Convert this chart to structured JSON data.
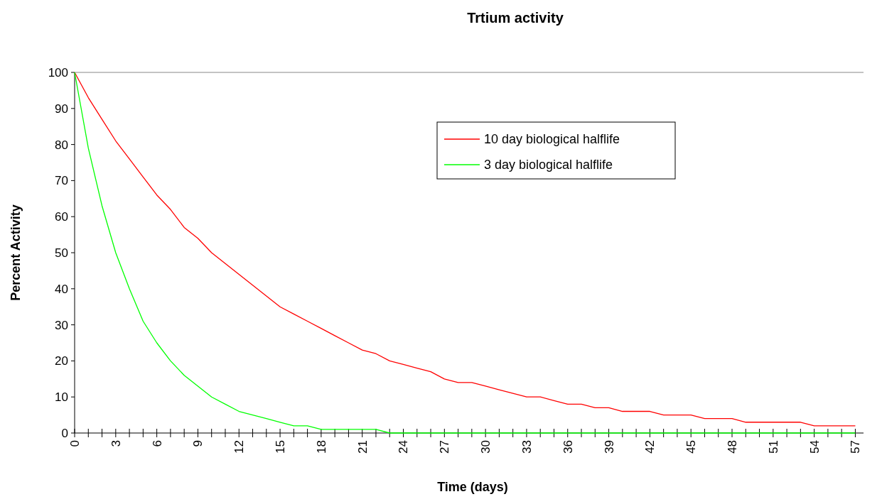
{
  "chart_data": {
    "type": "line",
    "title": "Trtium activity",
    "xlabel": "Time (days)",
    "ylabel": "Percent Activity",
    "x": [
      0,
      1,
      2,
      3,
      4,
      5,
      6,
      7,
      8,
      9,
      10,
      11,
      12,
      13,
      14,
      15,
      16,
      17,
      18,
      19,
      20,
      21,
      22,
      23,
      24,
      25,
      26,
      27,
      28,
      29,
      30,
      31,
      32,
      33,
      34,
      35,
      36,
      37,
      38,
      39,
      40,
      41,
      42,
      43,
      44,
      45,
      46,
      47,
      48,
      49,
      50,
      51,
      52,
      53,
      54,
      55,
      56,
      57
    ],
    "series": [
      {
        "name": "10 day biological halflife",
        "color": "#ff0000",
        "values": [
          100,
          93,
          87,
          81,
          76,
          71,
          66,
          62,
          57,
          54,
          50,
          47,
          44,
          41,
          38,
          35,
          33,
          31,
          29,
          27,
          25,
          23,
          22,
          20,
          19,
          18,
          17,
          15,
          14,
          14,
          13,
          12,
          11,
          10,
          10,
          9,
          8,
          8,
          7,
          7,
          6,
          6,
          6,
          5,
          5,
          5,
          4,
          4,
          4,
          3,
          3,
          3,
          3,
          3,
          2,
          2,
          2,
          2
        ]
      },
      {
        "name": "3 day biological halflife",
        "color": "#00ff00",
        "values": [
          100,
          79,
          63,
          50,
          40,
          31,
          25,
          20,
          16,
          13,
          10,
          8,
          6,
          5,
          4,
          3,
          2,
          2,
          1,
          1,
          1,
          1,
          1,
          0,
          0,
          0,
          0,
          0,
          0,
          0,
          0,
          0,
          0,
          0,
          0,
          0,
          0,
          0,
          0,
          0,
          0,
          0,
          0,
          0,
          0,
          0,
          0,
          0,
          0,
          0,
          0,
          0,
          0,
          0,
          0,
          0,
          0,
          0
        ]
      }
    ],
    "xlim": [
      0,
      57.6
    ],
    "xticks": [
      0,
      {
        "value": 1,
        "label": null
      },
      {
        "value": 2,
        "label": null
      },
      3,
      {
        "value": 4,
        "label": null
      },
      {
        "value": 5,
        "label": null
      },
      6,
      {
        "value": 7,
        "label": null
      },
      {
        "value": 8,
        "label": null
      },
      9,
      {
        "value": 10,
        "label": null
      },
      {
        "value": 11,
        "label": null
      },
      12,
      {
        "value": 13,
        "label": null
      },
      {
        "value": 14,
        "label": null
      },
      15,
      {
        "value": 16,
        "label": null
      },
      {
        "value": 17,
        "label": null
      },
      18,
      {
        "value": 19,
        "label": null
      },
      {
        "value": 20,
        "label": null
      },
      21,
      {
        "value": 22,
        "label": null
      },
      {
        "value": 23,
        "label": null
      },
      24,
      {
        "value": 25,
        "label": null
      },
      {
        "value": 26,
        "label": null
      },
      27,
      {
        "value": 28,
        "label": null
      },
      {
        "value": 29,
        "label": null
      },
      30,
      {
        "value": 31,
        "label": null
      },
      {
        "value": 32,
        "label": null
      },
      33,
      {
        "value": 34,
        "label": null
      },
      {
        "value": 35,
        "label": null
      },
      36,
      {
        "value": 37,
        "label": null
      },
      {
        "value": 38,
        "label": null
      },
      39,
      {
        "value": 40,
        "label": null
      },
      {
        "value": 41,
        "label": null
      },
      42,
      {
        "value": 43,
        "label": null
      },
      {
        "value": 44,
        "label": null
      },
      45,
      {
        "value": 46,
        "label": null
      },
      {
        "value": 47,
        "label": null
      },
      48,
      {
        "value": 49,
        "label": null
      },
      {
        "value": 50,
        "label": null
      },
      51,
      {
        "value": 52,
        "label": null
      },
      {
        "value": 53,
        "label": null
      },
      54,
      {
        "value": 55,
        "label": null
      },
      {
        "value": 56,
        "label": null
      },
      57
    ],
    "ylim": [
      0,
      100
    ],
    "yticks": [
      0,
      10,
      20,
      30,
      40,
      50,
      60,
      70,
      80,
      90,
      100
    ],
    "grid": false,
    "legend": "top",
    "marker": "none",
    "line_style": "solid"
  }
}
